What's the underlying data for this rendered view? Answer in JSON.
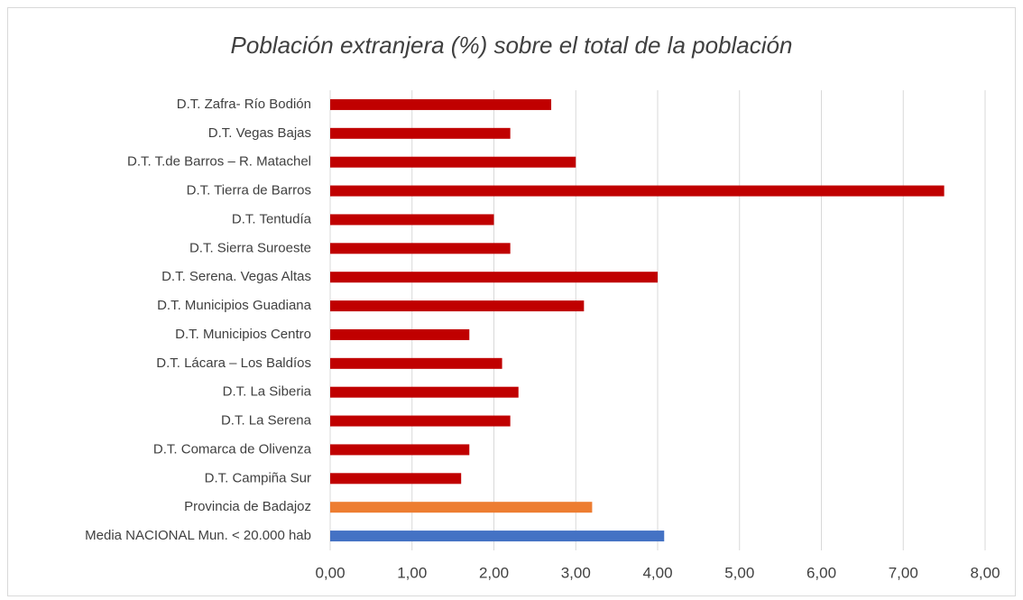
{
  "chart_data": {
    "type": "bar",
    "orientation": "horizontal",
    "title": "Población extranjera (%) sobre el total de la población",
    "categories": [
      "D.T. Zafra- Río Bodión",
      "D.T. Vegas Bajas",
      "D.T. T.de Barros – R. Matachel",
      "D.T. Tierra de Barros",
      "D.T. Tentudía",
      "D.T. Sierra Suroeste",
      "D.T. Serena. Vegas Altas",
      "D.T. Municipios Guadiana",
      "D.T. Municipios Centro",
      "D.T. Lácara – Los Baldíos",
      "D.T. La Siberia",
      "D.T. La Serena",
      "D.T. Comarca de Olivenza",
      "D.T. Campiña Sur",
      "Provincia de Badajoz",
      "Media NACIONAL Mun. < 20.000 hab"
    ],
    "values": [
      2.7,
      2.2,
      3.0,
      7.5,
      2.0,
      2.2,
      4.0,
      3.1,
      1.7,
      2.1,
      2.3,
      2.2,
      1.7,
      1.6,
      3.2,
      4.08
    ],
    "colors": [
      "#c00000",
      "#c00000",
      "#c00000",
      "#c00000",
      "#c00000",
      "#c00000",
      "#c00000",
      "#c00000",
      "#c00000",
      "#c00000",
      "#c00000",
      "#c00000",
      "#c00000",
      "#c00000",
      "#ed7d31",
      "#4472c4"
    ],
    "xlim": [
      0,
      8
    ],
    "xticks": [
      {
        "value": 0,
        "label": "0,00"
      },
      {
        "value": 1,
        "label": "1,00"
      },
      {
        "value": 2,
        "label": "2,00"
      },
      {
        "value": 3,
        "label": "3,00"
      },
      {
        "value": 4,
        "label": "4,00"
      },
      {
        "value": 5,
        "label": "5,00"
      },
      {
        "value": 6,
        "label": "6,00"
      },
      {
        "value": 7,
        "label": "7,00"
      },
      {
        "value": 8,
        "label": "8,00"
      }
    ],
    "grid": true
  }
}
